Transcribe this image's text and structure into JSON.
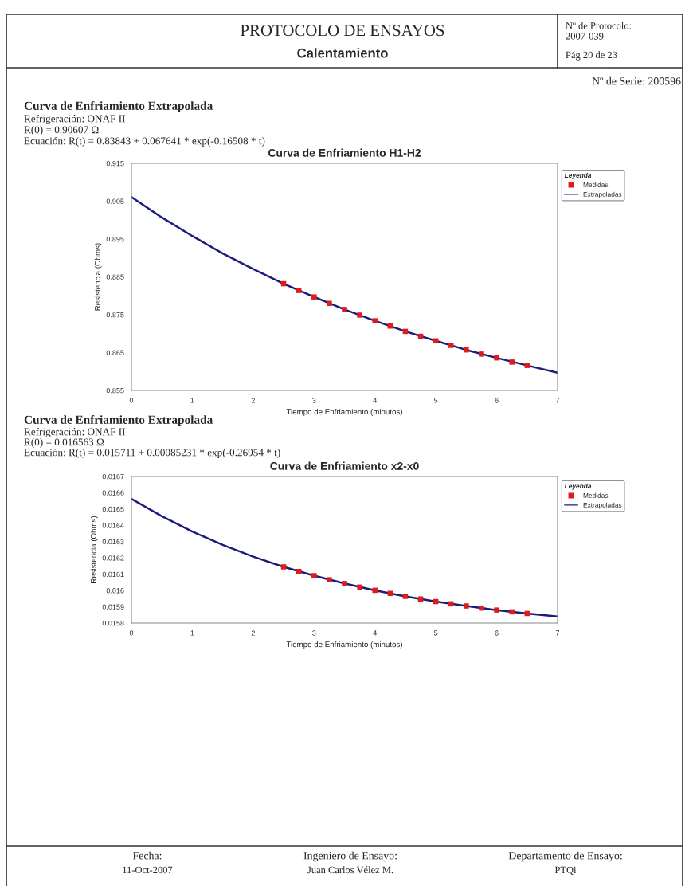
{
  "chart_data": [
    {
      "type": "line",
      "title": "Curva de Enfriamiento H1-H2",
      "xlabel": "Tiempo de Enfriamiento (minutos)",
      "ylabel": "Resistencia (Ohms)",
      "legend_title": "Leyenda",
      "legend": "top right",
      "grid": false,
      "xlim": [
        0,
        7
      ],
      "xticks": [
        0,
        1,
        2,
        3,
        4,
        5,
        6,
        7
      ],
      "ylim": [
        0.855,
        0.915
      ],
      "yticks": [
        0.855,
        0.865,
        0.875,
        0.885,
        0.895,
        0.905,
        0.915
      ],
      "series": [
        {
          "name": "Medidas",
          "type": "scatter",
          "marker": "square",
          "color": "#e01b1b",
          "x": [
            2.5,
            2.75,
            3.0,
            3.25,
            3.5,
            3.75,
            4.0,
            4.25,
            4.5,
            4.75,
            5.0,
            5.25,
            5.5,
            5.75,
            6.0,
            6.25,
            6.5
          ],
          "values": [
            0.8832,
            0.8814,
            0.8797,
            0.878,
            0.8764,
            0.8749,
            0.8734,
            0.872,
            0.8706,
            0.8693,
            0.8681,
            0.8669,
            0.8657,
            0.8646,
            0.8636,
            0.8625,
            0.8616
          ]
        },
        {
          "name": "Extrapoladas",
          "marker": "none",
          "color": "#1c1c7a",
          "x": [
            0,
            0.5,
            1,
            1.5,
            2,
            2.5,
            3,
            3.5,
            4,
            4.5,
            5,
            5.5,
            6,
            6.5,
            7
          ],
          "values": [
            0.9061,
            0.9007,
            0.8958,
            0.8912,
            0.8871,
            0.8832,
            0.8797,
            0.8764,
            0.8734,
            0.8706,
            0.8681,
            0.8657,
            0.8636,
            0.8616,
            0.8597
          ]
        }
      ],
      "annotations": [
        "PROTOCOLO DE ENSAYOS",
        "Calentamiento",
        "Nº de Protocolo:\n2007-039",
        "Pág 20 de 23",
        "Nº de Serie: 200596",
        "Curva de Enfriamiento Extrapolada",
        "Refrigeración: ONAF II",
        "R(0) = 0.90607 Ω",
        "Ecuación: R(t) = 0.83843 + 0.067641 * exp(-0.16508 * t)"
      ]
    },
    {
      "type": "line",
      "title": "Curva de Enfriamiento x2-x0",
      "xlabel": "Tiempo de Enfriamiento (minutos)",
      "ylabel": "Resistencia (Ohms)",
      "legend_title": "Leyenda",
      "legend": "top right",
      "grid": false,
      "xlim": [
        0,
        7
      ],
      "xticks": [
        0,
        1,
        2,
        3,
        4,
        5,
        6,
        7
      ],
      "ylim": [
        0.0158,
        0.0167
      ],
      "yticks": [
        0.0158,
        0.0159,
        0.016,
        0.0161,
        0.0162,
        0.0163,
        0.0164,
        0.0165,
        0.0166,
        0.0167
      ],
      "series": [
        {
          "name": "Medidas",
          "type": "scatter",
          "marker": "square",
          "color": "#e01b1b",
          "x": [
            2.5,
            2.75,
            3.0,
            3.25,
            3.5,
            3.75,
            4.0,
            4.25,
            4.5,
            4.75,
            5.0,
            5.25,
            5.5,
            5.75,
            6.0,
            6.25,
            6.5
          ],
          "values": [
            0.016145,
            0.016117,
            0.016091,
            0.016066,
            0.016043,
            0.016021,
            0.016001,
            0.015982,
            0.015964,
            0.015948,
            0.015932,
            0.015918,
            0.015905,
            0.015892,
            0.01588,
            0.015869,
            0.015859
          ]
        },
        {
          "name": "Extrapoladas",
          "marker": "none",
          "color": "#1c1c7a",
          "x": [
            0,
            0.5,
            1,
            1.5,
            2,
            2.5,
            3,
            3.5,
            4,
            4.5,
            5,
            5.5,
            6,
            6.5,
            7
          ],
          "values": [
            0.016563,
            0.016456,
            0.016362,
            0.01628,
            0.016208,
            0.016145,
            0.016091,
            0.016043,
            0.016001,
            0.015964,
            0.015932,
            0.015905,
            0.01588,
            0.015859,
            0.01584
          ]
        }
      ],
      "annotations": [
        "Curva de Enfriamiento Extrapolada",
        "Refrigeración: ONAF II",
        "R(0) = 0.016563 Ω",
        "Ecuación: R(t) = 0.015711 + 0.00085231 * exp(-0.26954 * t)",
        "Fecha:",
        "11-Oct-2007",
        "Ingeniero de Ensayo:",
        "Juan Carlos Vélez M.",
        "Departamento de Ensayo:",
        "PTQi"
      ]
    }
  ]
}
